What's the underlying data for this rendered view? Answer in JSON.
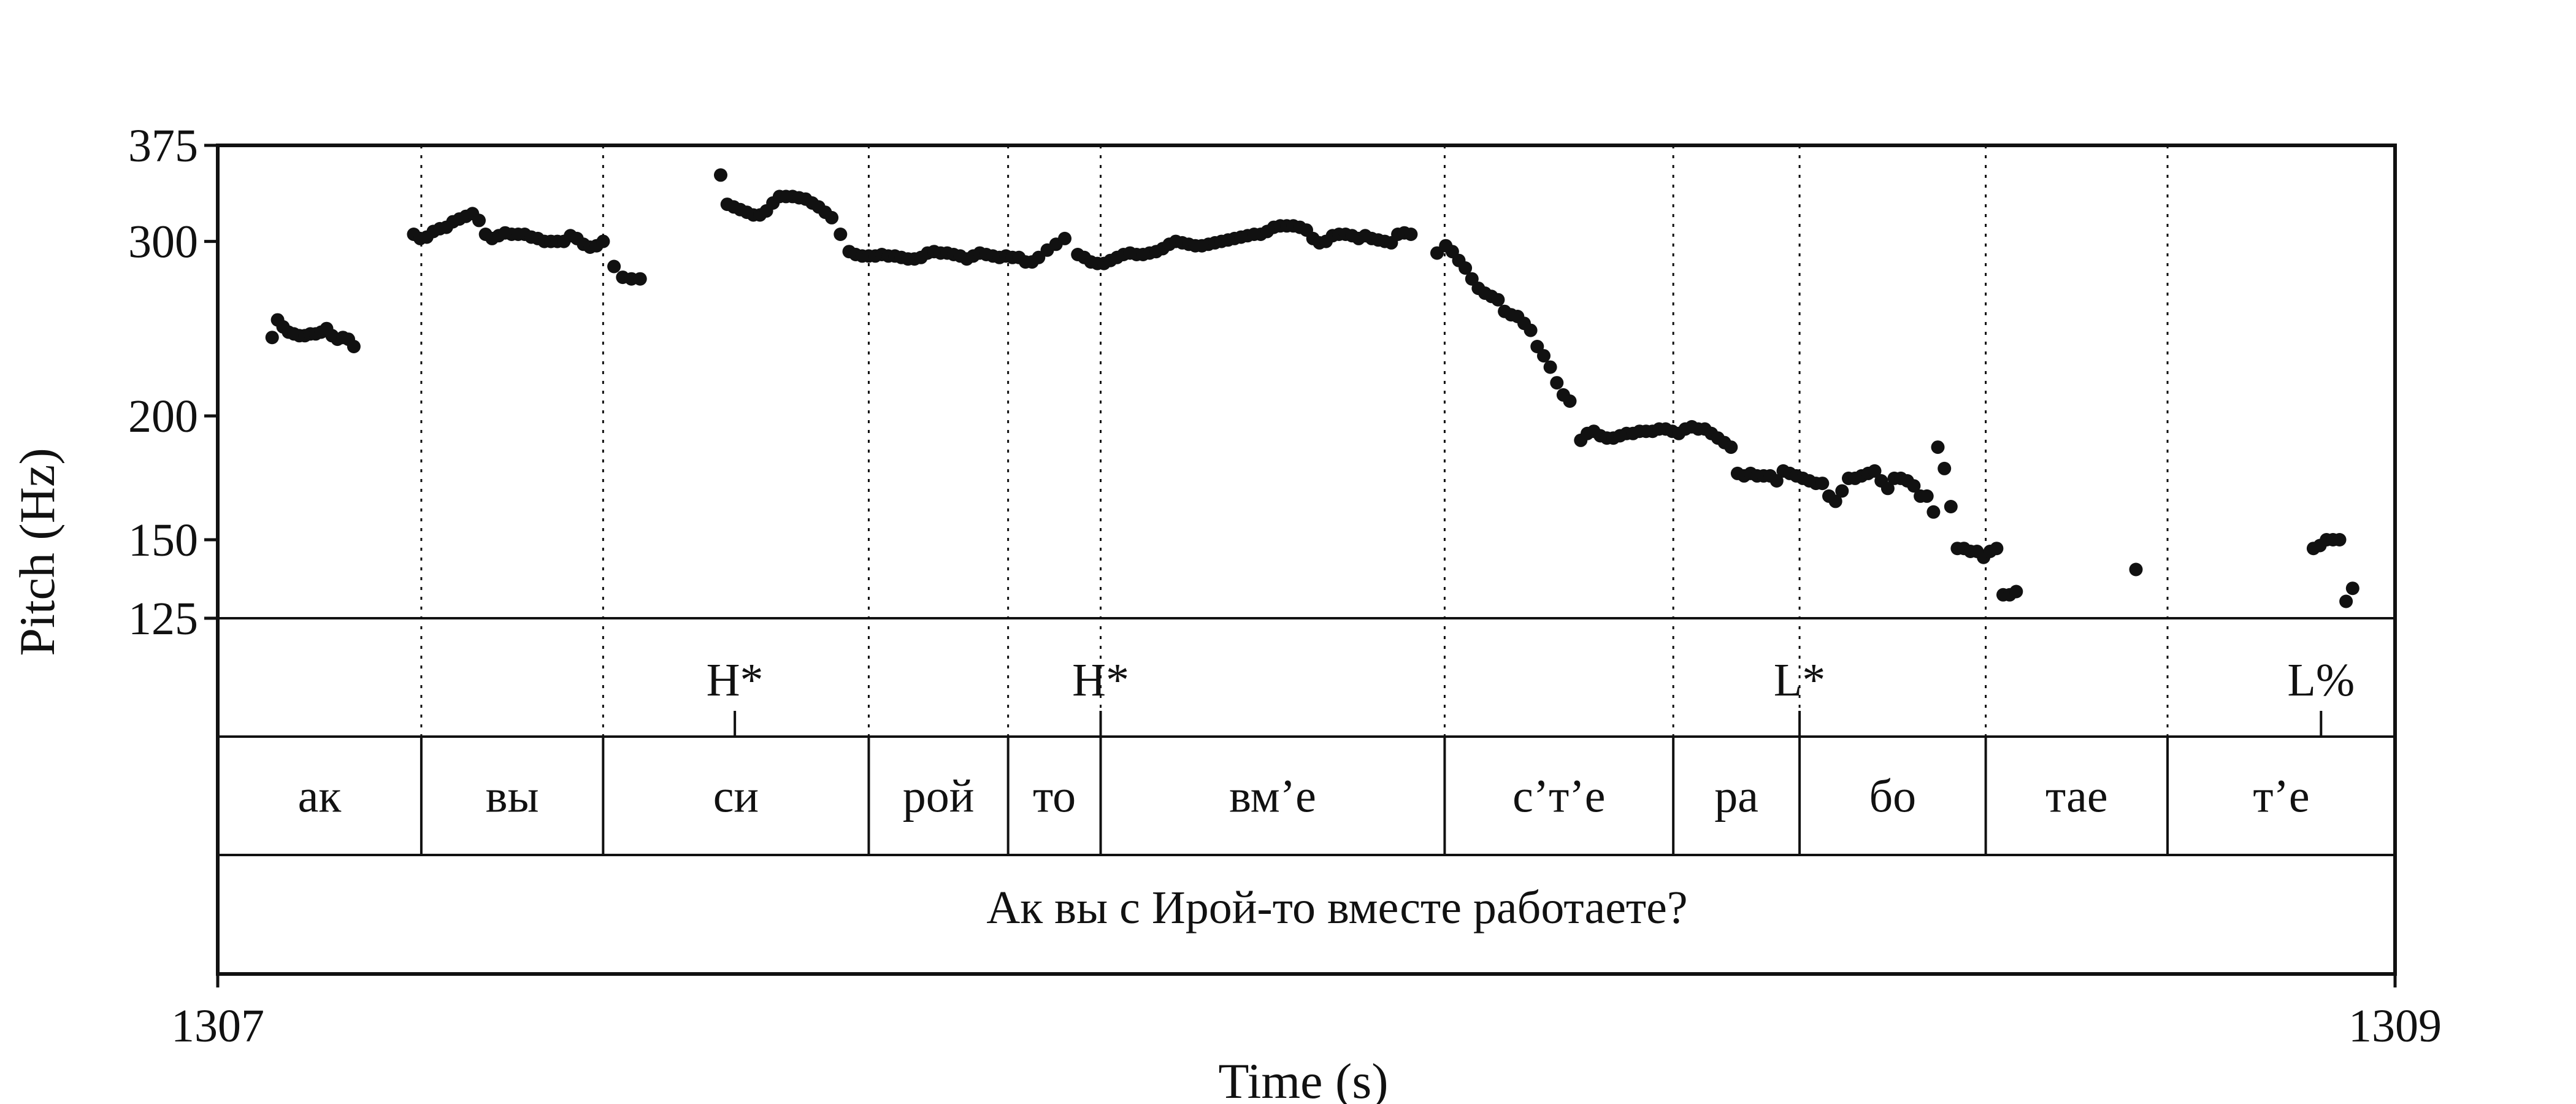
{
  "chart_data": {
    "type": "scatter",
    "title": "",
    "xlabel": "Time (s)",
    "ylabel": "Pitch (Hz)",
    "xlim": [
      1307,
      1309
    ],
    "ylim": [
      125,
      375
    ],
    "yscale": "log",
    "x_tick_labels": [
      "1307",
      "1309"
    ],
    "y_ticks": [
      125,
      150,
      200,
      300,
      375
    ],
    "y_tick_labels": [
      "125",
      "150",
      "200",
      "300",
      "375"
    ],
    "grid": false,
    "syllable_boundaries": [
      1307.187,
      1307.354,
      1307.598,
      1307.726,
      1307.811,
      1308.127,
      1308.337,
      1308.453,
      1308.624,
      1308.791,
      1309.0
    ],
    "tone_tier": [
      {
        "label": "H*",
        "time": 1307.475
      },
      {
        "label": "H*",
        "time": 1307.811
      },
      {
        "label": "L*",
        "time": 1308.453
      },
      {
        "label": "L%",
        "time": 1308.932
      }
    ],
    "syllable_tier": [
      {
        "label": "ак",
        "start": 1307.0,
        "end": 1307.187
      },
      {
        "label": "вы",
        "start": 1307.187,
        "end": 1307.354
      },
      {
        "label": "си",
        "start": 1307.354,
        "end": 1307.598
      },
      {
        "label": "рой",
        "start": 1307.598,
        "end": 1307.726
      },
      {
        "label": "то",
        "start": 1307.726,
        "end": 1307.811
      },
      {
        "label": "вм’е",
        "start": 1307.811,
        "end": 1308.127
      },
      {
        "label": "с’т’е",
        "start": 1308.127,
        "end": 1308.337
      },
      {
        "label": "ра",
        "start": 1308.337,
        "end": 1308.453
      },
      {
        "label": "бо",
        "start": 1308.453,
        "end": 1308.624
      },
      {
        "label": "тае",
        "start": 1308.624,
        "end": 1308.791
      },
      {
        "label": "т’е",
        "start": 1308.791,
        "end": 1309.0
      }
    ],
    "sentence_tier": "Ак вы с Ирой-то вместе работаете?",
    "series": [
      {
        "values": [
          [
            1307.05,
            240
          ],
          [
            1307.055,
            250
          ],
          [
            1307.06,
            246
          ],
          [
            1307.065,
            243
          ],
          [
            1307.07,
            242
          ],
          [
            1307.075,
            241
          ],
          [
            1307.08,
            241
          ],
          [
            1307.085,
            242
          ],
          [
            1307.09,
            242
          ],
          [
            1307.095,
            243
          ],
          [
            1307.1,
            245
          ],
          [
            1307.105,
            241
          ],
          [
            1307.11,
            239
          ],
          [
            1307.115,
            240
          ],
          [
            1307.12,
            239
          ],
          [
            1307.125,
            235
          ],
          [
            1307.18,
            305
          ],
          [
            1307.186,
            302
          ],
          [
            1307.192,
            303
          ],
          [
            1307.198,
            307
          ],
          [
            1307.204,
            309
          ],
          [
            1307.21,
            310
          ],
          [
            1307.216,
            314
          ],
          [
            1307.222,
            316
          ],
          [
            1307.228,
            318
          ],
          [
            1307.234,
            320
          ],
          [
            1307.24,
            315
          ],
          [
            1307.246,
            305
          ],
          [
            1307.252,
            302
          ],
          [
            1307.258,
            304
          ],
          [
            1307.264,
            306
          ],
          [
            1307.27,
            305
          ],
          [
            1307.276,
            305
          ],
          [
            1307.282,
            305
          ],
          [
            1307.288,
            303
          ],
          [
            1307.294,
            302
          ],
          [
            1307.3,
            300
          ],
          [
            1307.306,
            300
          ],
          [
            1307.312,
            300
          ],
          [
            1307.318,
            300
          ],
          [
            1307.324,
            304
          ],
          [
            1307.33,
            302
          ],
          [
            1307.336,
            298
          ],
          [
            1307.342,
            296
          ],
          [
            1307.348,
            297
          ],
          [
            1307.354,
            300
          ],
          [
            1307.364,
            283
          ],
          [
            1307.372,
            276
          ],
          [
            1307.38,
            275
          ],
          [
            1307.388,
            275
          ],
          [
            1307.462,
            350
          ],
          [
            1307.468,
            327
          ],
          [
            1307.474,
            325
          ],
          [
            1307.48,
            323
          ],
          [
            1307.486,
            321
          ],
          [
            1307.492,
            319
          ],
          [
            1307.498,
            319
          ],
          [
            1307.504,
            322
          ],
          [
            1307.51,
            328
          ],
          [
            1307.516,
            333
          ],
          [
            1307.522,
            333
          ],
          [
            1307.528,
            333
          ],
          [
            1307.534,
            332
          ],
          [
            1307.54,
            331
          ],
          [
            1307.546,
            328
          ],
          [
            1307.552,
            325
          ],
          [
            1307.558,
            321
          ],
          [
            1307.564,
            317
          ],
          [
            1307.572,
            305
          ],
          [
            1307.58,
            293
          ],
          [
            1307.586,
            291
          ],
          [
            1307.592,
            290
          ],
          [
            1307.598,
            290
          ],
          [
            1307.604,
            290
          ],
          [
            1307.61,
            291
          ],
          [
            1307.616,
            290
          ],
          [
            1307.622,
            290
          ],
          [
            1307.628,
            289
          ],
          [
            1307.634,
            288
          ],
          [
            1307.64,
            288
          ],
          [
            1307.646,
            289
          ],
          [
            1307.652,
            292
          ],
          [
            1307.658,
            293
          ],
          [
            1307.664,
            292
          ],
          [
            1307.67,
            292
          ],
          [
            1307.676,
            291
          ],
          [
            1307.682,
            290
          ],
          [
            1307.688,
            288
          ],
          [
            1307.694,
            290
          ],
          [
            1307.7,
            292
          ],
          [
            1307.706,
            291
          ],
          [
            1307.712,
            290
          ],
          [
            1307.718,
            289
          ],
          [
            1307.724,
            290
          ],
          [
            1307.73,
            289
          ],
          [
            1307.736,
            289
          ],
          [
            1307.742,
            286
          ],
          [
            1307.748,
            286
          ],
          [
            1307.754,
            289
          ],
          [
            1307.762,
            294
          ],
          [
            1307.77,
            298
          ],
          [
            1307.778,
            302
          ],
          [
            1307.79,
            291
          ],
          [
            1307.796,
            289
          ],
          [
            1307.802,
            286
          ],
          [
            1307.808,
            285
          ],
          [
            1307.814,
            285
          ],
          [
            1307.82,
            287
          ],
          [
            1307.826,
            289
          ],
          [
            1307.832,
            291
          ],
          [
            1307.838,
            292
          ],
          [
            1307.844,
            291
          ],
          [
            1307.85,
            291
          ],
          [
            1307.856,
            292
          ],
          [
            1307.862,
            293
          ],
          [
            1307.868,
            295
          ],
          [
            1307.874,
            298
          ],
          [
            1307.88,
            300
          ],
          [
            1307.886,
            299
          ],
          [
            1307.892,
            298
          ],
          [
            1307.898,
            297
          ],
          [
            1307.904,
            297
          ],
          [
            1307.91,
            298
          ],
          [
            1307.916,
            299
          ],
          [
            1307.922,
            300
          ],
          [
            1307.928,
            301
          ],
          [
            1307.934,
            302
          ],
          [
            1307.94,
            303
          ],
          [
            1307.946,
            304
          ],
          [
            1307.952,
            305
          ],
          [
            1307.958,
            305
          ],
          [
            1307.964,
            307
          ],
          [
            1307.97,
            310
          ],
          [
            1307.976,
            311
          ],
          [
            1307.982,
            311
          ],
          [
            1307.988,
            311
          ],
          [
            1307.994,
            310
          ],
          [
            1308.0,
            308
          ],
          [
            1308.006,
            302
          ],
          [
            1308.012,
            299
          ],
          [
            1308.018,
            300
          ],
          [
            1308.024,
            304
          ],
          [
            1308.03,
            305
          ],
          [
            1308.036,
            305
          ],
          [
            1308.042,
            304
          ],
          [
            1308.048,
            302
          ],
          [
            1308.054,
            304
          ],
          [
            1308.06,
            302
          ],
          [
            1308.066,
            301
          ],
          [
            1308.072,
            300
          ],
          [
            1308.078,
            299
          ],
          [
            1308.084,
            305
          ],
          [
            1308.09,
            306
          ],
          [
            1308.096,
            305
          ],
          [
            1308.12,
            292
          ],
          [
            1308.128,
            297
          ],
          [
            1308.134,
            293
          ],
          [
            1308.14,
            287
          ],
          [
            1308.146,
            282
          ],
          [
            1308.152,
            275
          ],
          [
            1308.158,
            269
          ],
          [
            1308.164,
            266
          ],
          [
            1308.17,
            264
          ],
          [
            1308.176,
            262
          ],
          [
            1308.182,
            255
          ],
          [
            1308.188,
            253
          ],
          [
            1308.194,
            252
          ],
          [
            1308.2,
            248
          ],
          [
            1308.206,
            244
          ],
          [
            1308.212,
            235
          ],
          [
            1308.218,
            230
          ],
          [
            1308.224,
            224
          ],
          [
            1308.23,
            216
          ],
          [
            1308.236,
            210
          ],
          [
            1308.242,
            207
          ],
          [
            1308.252,
            189
          ],
          [
            1308.258,
            192
          ],
          [
            1308.264,
            193
          ],
          [
            1308.27,
            191
          ],
          [
            1308.276,
            190
          ],
          [
            1308.282,
            190
          ],
          [
            1308.288,
            191
          ],
          [
            1308.294,
            192
          ],
          [
            1308.3,
            192
          ],
          [
            1308.306,
            193
          ],
          [
            1308.312,
            193
          ],
          [
            1308.318,
            193
          ],
          [
            1308.324,
            194
          ],
          [
            1308.33,
            194
          ],
          [
            1308.336,
            193
          ],
          [
            1308.342,
            192
          ],
          [
            1308.348,
            194
          ],
          [
            1308.354,
            195
          ],
          [
            1308.36,
            194
          ],
          [
            1308.366,
            194
          ],
          [
            1308.372,
            192
          ],
          [
            1308.378,
            190
          ],
          [
            1308.384,
            188
          ],
          [
            1308.39,
            186
          ],
          [
            1308.396,
            175
          ],
          [
            1308.402,
            174
          ],
          [
            1308.408,
            175
          ],
          [
            1308.414,
            174
          ],
          [
            1308.42,
            174
          ],
          [
            1308.426,
            174
          ],
          [
            1308.432,
            172
          ],
          [
            1308.438,
            176
          ],
          [
            1308.444,
            175
          ],
          [
            1308.45,
            174
          ],
          [
            1308.456,
            173
          ],
          [
            1308.462,
            172
          ],
          [
            1308.468,
            171
          ],
          [
            1308.474,
            171
          ],
          [
            1308.48,
            166
          ],
          [
            1308.486,
            164
          ],
          [
            1308.492,
            168
          ],
          [
            1308.498,
            173
          ],
          [
            1308.504,
            173
          ],
          [
            1308.51,
            174
          ],
          [
            1308.516,
            175
          ],
          [
            1308.522,
            176
          ],
          [
            1308.528,
            172
          ],
          [
            1308.534,
            169
          ],
          [
            1308.54,
            173
          ],
          [
            1308.546,
            173
          ],
          [
            1308.552,
            172
          ],
          [
            1308.558,
            170
          ],
          [
            1308.564,
            166
          ],
          [
            1308.57,
            166
          ],
          [
            1308.576,
            160
          ],
          [
            1308.58,
            186
          ],
          [
            1308.586,
            177
          ],
          [
            1308.592,
            162
          ],
          [
            1308.598,
            147
          ],
          [
            1308.604,
            147
          ],
          [
            1308.61,
            146
          ],
          [
            1308.616,
            146
          ],
          [
            1308.622,
            144
          ],
          [
            1308.628,
            146
          ],
          [
            1308.634,
            147
          ],
          [
            1308.64,
            132
          ],
          [
            1308.646,
            132
          ],
          [
            1308.652,
            133
          ],
          [
            1308.762,
            140
          ],
          [
            1308.925,
            147
          ],
          [
            1308.931,
            148
          ],
          [
            1308.937,
            150
          ],
          [
            1308.943,
            150
          ],
          [
            1308.949,
            150
          ],
          [
            1308.955,
            130
          ],
          [
            1308.961,
            134
          ]
        ]
      }
    ]
  }
}
